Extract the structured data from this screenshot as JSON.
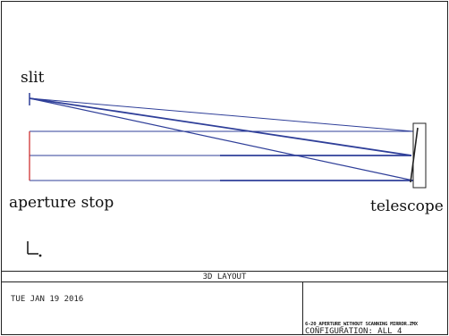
{
  "labels": {
    "slit": "slit",
    "aperture_stop": "aperture stop",
    "telescope": "telescope"
  },
  "footer": {
    "title": "3D LAYOUT",
    "date": "TUE JAN 19 2016",
    "filename": "6-20_APERTURE_WITHOUT SCANNING MIRROR.ZMX",
    "configuration": "CONFIGURATION: ALL 4"
  },
  "colors": {
    "ray": "#2f3f99",
    "aperture": "#cc2222",
    "frame": "#222222"
  },
  "icons": {
    "coordinate_axes": "axis-triad-icon"
  }
}
